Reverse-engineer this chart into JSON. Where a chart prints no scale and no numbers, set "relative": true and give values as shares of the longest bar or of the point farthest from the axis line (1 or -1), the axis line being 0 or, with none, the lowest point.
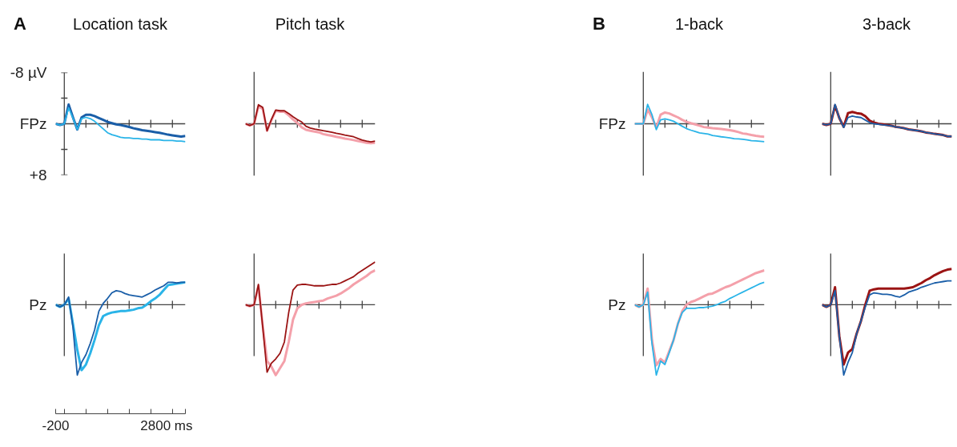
{
  "chart_data": [
    {
      "type": "line",
      "title": "Location task",
      "ylabel": "FPz",
      "annotations": [
        "A"
      ],
      "categories": [
        null,
        null,
        null,
        null,
        null,
        null,
        null,
        null,
        null,
        null,
        null,
        null,
        null,
        null,
        null,
        null,
        null,
        null,
        null,
        null,
        null,
        null,
        null,
        null,
        null,
        null,
        null,
        null,
        null,
        null,
        null
      ],
      "ylim": [
        8,
        -8
      ],
      "yticks": [
        {
          "value": -8,
          "label": "-8 µV"
        },
        {
          "value": -4,
          "label": null
        },
        {
          "value": 0,
          "label": null
        },
        {
          "value": 4,
          "label": null
        },
        {
          "value": 8,
          "label": "+8"
        }
      ],
      "series": [
        {
          "color": "#1a5ea8",
          "values": [
            0,
            0.2,
            0,
            -3.0,
            -1.0,
            0.9,
            -1.0,
            -1.4,
            -1.4,
            -1.2,
            -0.9,
            -0.6,
            -0.3,
            -0.1,
            0.1,
            0.2,
            0.35,
            0.5,
            0.7,
            0.85,
            1.0,
            1.1,
            1.2,
            1.3,
            1.4,
            1.55,
            1.7,
            1.8,
            1.9,
            2.0,
            1.9
          ]
        },
        {
          "color": "#2ab4e8",
          "values": [
            0,
            0.2,
            0,
            -2.5,
            -0.9,
            0.9,
            -0.8,
            -1.0,
            -0.8,
            -0.4,
            0.2,
            0.8,
            1.4,
            1.7,
            1.9,
            2.1,
            2.2,
            2.2,
            2.3,
            2.3,
            2.4,
            2.4,
            2.5,
            2.5,
            2.5,
            2.6,
            2.6,
            2.6,
            2.7,
            2.7,
            2.8
          ]
        }
      ]
    },
    {
      "type": "line",
      "title": "Pitch task",
      "relative": true,
      "categories": [
        null,
        null,
        null,
        null,
        null,
        null,
        null,
        null,
        null,
        null,
        null,
        null,
        null,
        null,
        null,
        null,
        null,
        null,
        null,
        null,
        null,
        null,
        null,
        null,
        null,
        null,
        null,
        null,
        null,
        null,
        null
      ],
      "series": [
        {
          "color": "#f4a0aa",
          "values": [
            0,
            -0.09,
            0,
            0.89,
            0.76,
            -0.36,
            0.18,
            0.67,
            0.62,
            0.62,
            0.44,
            0.22,
            0.04,
            -0.18,
            -0.31,
            -0.36,
            -0.4,
            -0.44,
            -0.53,
            -0.58,
            -0.62,
            -0.67,
            -0.71,
            -0.76,
            -0.8,
            -0.84,
            -0.89,
            -0.93,
            -0.98,
            -1,
            -0.98
          ]
        },
        {
          "color": "#9b1414",
          "values": [
            0,
            -0.09,
            0,
            0.98,
            0.84,
            -0.36,
            0.22,
            0.71,
            0.67,
            0.67,
            0.53,
            0.36,
            0.22,
            0.09,
            -0.13,
            -0.22,
            -0.27,
            -0.31,
            -0.36,
            -0.4,
            -0.44,
            -0.49,
            -0.53,
            -0.58,
            -0.62,
            -0.67,
            -0.76,
            -0.84,
            -0.89,
            -0.93,
            -0.89
          ]
        }
      ]
    },
    {
      "type": "line",
      "title": "1-back",
      "ylabel": "FPz",
      "annotations": [
        "B"
      ],
      "relative": true,
      "categories": [
        null,
        null,
        null,
        null,
        null,
        null,
        null,
        null,
        null,
        null,
        null,
        null,
        null,
        null,
        null,
        null,
        null,
        null,
        null,
        null,
        null,
        null,
        null,
        null,
        null,
        null,
        null,
        null,
        null,
        null,
        null
      ],
      "series": [
        {
          "color": "#f4a0aa",
          "values": [
            0,
            0,
            0,
            0.73,
            0.33,
            -0.2,
            0.47,
            0.58,
            0.53,
            0.43,
            0.33,
            0.2,
            0.1,
            0.03,
            -0.03,
            -0.1,
            -0.17,
            -0.2,
            -0.23,
            -0.25,
            -0.27,
            -0.3,
            -0.33,
            -0.37,
            -0.43,
            -0.5,
            -0.53,
            -0.58,
            -0.62,
            -0.65,
            -0.67
          ]
        },
        {
          "color": "#2ab4e8",
          "values": [
            0,
            0,
            0,
            1,
            0.47,
            -0.3,
            0.2,
            0.25,
            0.2,
            0.13,
            0,
            -0.13,
            -0.25,
            -0.33,
            -0.4,
            -0.47,
            -0.5,
            -0.53,
            -0.6,
            -0.63,
            -0.67,
            -0.7,
            -0.73,
            -0.77,
            -0.78,
            -0.8,
            -0.83,
            -0.87,
            -0.88,
            -0.9,
            -0.92
          ]
        }
      ]
    },
    {
      "type": "line",
      "title": "3-back",
      "relative": true,
      "categories": [
        null,
        null,
        null,
        null,
        null,
        null,
        null,
        null,
        null,
        null,
        null,
        null,
        null,
        null,
        null,
        null,
        null,
        null,
        null,
        null,
        null,
        null,
        null,
        null,
        null,
        null,
        null,
        null,
        null,
        null,
        null
      ],
      "series": [
        {
          "color": "#9b1414",
          "values": [
            0,
            -0.06,
            0,
            0.94,
            0.29,
            -0.16,
            0.55,
            0.61,
            0.55,
            0.52,
            0.39,
            0.16,
            0.06,
            0,
            -0.03,
            -0.06,
            -0.1,
            -0.16,
            -0.19,
            -0.23,
            -0.29,
            -0.32,
            -0.35,
            -0.39,
            -0.45,
            -0.48,
            -0.52,
            -0.55,
            -0.58,
            -0.65,
            -0.65
          ]
        },
        {
          "color": "#1a5ea8",
          "values": [
            0,
            -0.06,
            0,
            1,
            0.29,
            -0.19,
            0.32,
            0.4,
            0.35,
            0.32,
            0.19,
            0.06,
            0,
            -0.03,
            -0.06,
            -0.08,
            -0.11,
            -0.16,
            -0.19,
            -0.23,
            -0.29,
            -0.32,
            -0.35,
            -0.39,
            -0.45,
            -0.48,
            -0.52,
            -0.55,
            -0.58,
            -0.65,
            -0.65
          ]
        }
      ]
    },
    {
      "type": "line",
      "ylabel": "Pz",
      "relative": true,
      "annotations": [
        "-200",
        "2800 ms"
      ],
      "categories": [
        null,
        null,
        null,
        null,
        null,
        null,
        null,
        null,
        null,
        null,
        null,
        null,
        null,
        null,
        null,
        null,
        null,
        null,
        null,
        null,
        null,
        null,
        null,
        null,
        null,
        null,
        null,
        null,
        null,
        null,
        null
      ],
      "series": [
        {
          "color": "#2ab4e8",
          "values": [
            0,
            -0.03,
            0,
            0.09,
            -0.27,
            -0.64,
            -0.93,
            -0.85,
            -0.69,
            -0.5,
            -0.29,
            -0.16,
            -0.13,
            -0.11,
            -0.1,
            -0.09,
            -0.09,
            -0.08,
            -0.07,
            -0.05,
            -0.04,
            0,
            0.05,
            0.09,
            0.14,
            0.21,
            0.28,
            0.29,
            0.3,
            0.31,
            0.32
          ]
        },
        {
          "color": "#1a5ea8",
          "values": [
            0,
            -0.03,
            0,
            0.11,
            -0.32,
            -1,
            -0.82,
            -0.71,
            -0.55,
            -0.36,
            -0.09,
            0.02,
            0.09,
            0.17,
            0.2,
            0.19,
            0.16,
            0.14,
            0.13,
            0.12,
            0.11,
            0.14,
            0.17,
            0.21,
            0.24,
            0.27,
            0.32,
            0.32,
            0.31,
            0.32,
            0.32
          ]
        }
      ]
    },
    {
      "type": "line",
      "relative": true,
      "categories": [
        null,
        null,
        null,
        null,
        null,
        null,
        null,
        null,
        null,
        null,
        null,
        null,
        null,
        null,
        null,
        null,
        null,
        null,
        null,
        null,
        null,
        null,
        null,
        null,
        null,
        null,
        null,
        null,
        null,
        null,
        null
      ],
      "series": [
        {
          "color": "#f4a0aa",
          "values": [
            0,
            -0.02,
            0,
            0.27,
            -0.3,
            -0.8,
            -0.88,
            -1,
            -0.9,
            -0.8,
            -0.53,
            -0.21,
            -0.05,
            0,
            0.02,
            0.03,
            0.04,
            0.05,
            0.06,
            0.09,
            0.11,
            0.13,
            0.16,
            0.2,
            0.24,
            0.29,
            0.33,
            0.37,
            0.41,
            0.46,
            0.49
          ]
        },
        {
          "color": "#9b1414",
          "values": [
            0,
            -0.02,
            0,
            0.29,
            -0.32,
            -0.96,
            -0.83,
            -0.77,
            -0.69,
            -0.53,
            -0.11,
            0.21,
            0.28,
            0.29,
            0.29,
            0.28,
            0.27,
            0.27,
            0.27,
            0.28,
            0.29,
            0.29,
            0.31,
            0.34,
            0.37,
            0.4,
            0.45,
            0.49,
            0.53,
            0.57,
            0.61
          ]
        }
      ]
    },
    {
      "type": "line",
      "ylabel": "Pz",
      "relative": true,
      "categories": [
        null,
        null,
        null,
        null,
        null,
        null,
        null,
        null,
        null,
        null,
        null,
        null,
        null,
        null,
        null,
        null,
        null,
        null,
        null,
        null,
        null,
        null,
        null,
        null,
        null,
        null,
        null,
        null,
        null,
        null,
        null
      ],
      "series": [
        {
          "color": "#f4a0aa",
          "values": [
            0,
            -0.03,
            0,
            0.23,
            -0.5,
            -0.86,
            -0.77,
            -0.82,
            -0.66,
            -0.5,
            -0.27,
            -0.09,
            0,
            0.04,
            0.06,
            0.09,
            0.12,
            0.15,
            0.16,
            0.19,
            0.22,
            0.25,
            0.27,
            0.3,
            0.33,
            0.36,
            0.39,
            0.42,
            0.45,
            0.47,
            0.49
          ]
        },
        {
          "color": "#2ab4e8",
          "values": [
            0,
            -0.03,
            0,
            0.18,
            -0.55,
            -1,
            -0.8,
            -0.85,
            -0.68,
            -0.5,
            -0.27,
            -0.11,
            -0.05,
            -0.05,
            -0.05,
            -0.04,
            -0.04,
            -0.03,
            -0.02,
            0,
            0.03,
            0.05,
            0.09,
            0.12,
            0.15,
            0.18,
            0.21,
            0.24,
            0.27,
            0.3,
            0.32
          ]
        }
      ]
    },
    {
      "type": "line",
      "relative": true,
      "categories": [
        null,
        null,
        null,
        null,
        null,
        null,
        null,
        null,
        null,
        null,
        null,
        null,
        null,
        null,
        null,
        null,
        null,
        null,
        null,
        null,
        null,
        null,
        null,
        null,
        null,
        null,
        null,
        null,
        null,
        null,
        null
      ],
      "series": [
        {
          "color": "#9b1414",
          "values": [
            0,
            -0.03,
            0,
            0.25,
            -0.45,
            -0.85,
            -0.68,
            -0.63,
            -0.41,
            -0.23,
            0,
            0.2,
            0.22,
            0.23,
            0.23,
            0.23,
            0.23,
            0.23,
            0.23,
            0.23,
            0.24,
            0.25,
            0.28,
            0.31,
            0.35,
            0.38,
            0.42,
            0.45,
            0.48,
            0.5,
            0.51
          ]
        },
        {
          "color": "#1a5ea8",
          "values": [
            0,
            -0.03,
            0,
            0.2,
            -0.45,
            -1,
            -0.82,
            -0.68,
            -0.41,
            -0.23,
            -0.03,
            0.14,
            0.17,
            0.16,
            0.15,
            0.15,
            0.14,
            0.12,
            0.11,
            0.14,
            0.18,
            0.2,
            0.22,
            0.25,
            0.27,
            0.29,
            0.31,
            0.32,
            0.33,
            0.34,
            0.34
          ]
        }
      ]
    }
  ]
}
